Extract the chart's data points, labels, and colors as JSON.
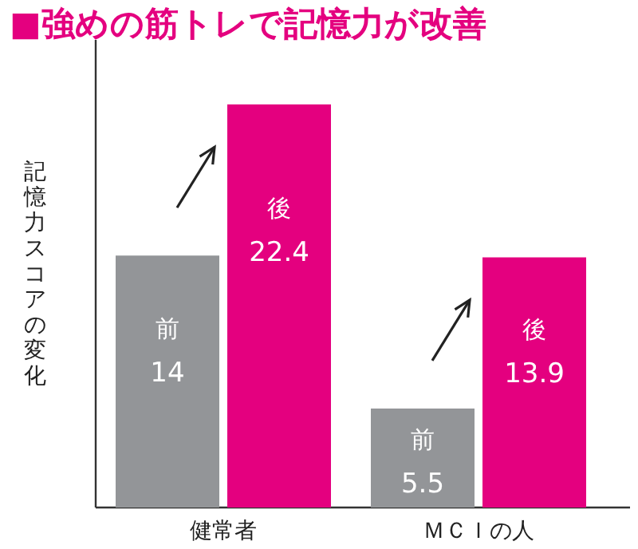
{
  "chart_data": {
    "type": "bar",
    "title": "■強めの筋トレで記憶力が改善",
    "ylabel": "記憶力スコアの変化",
    "categories": [
      "健常者",
      "ＭＣＩの人"
    ],
    "data_labels": true,
    "series": [
      {
        "name": "前",
        "color": "#939598",
        "values": [
          14,
          5.5
        ]
      },
      {
        "name": "後",
        "color": "#e4007f",
        "values": [
          22.4,
          13.9
        ]
      }
    ]
  }
}
